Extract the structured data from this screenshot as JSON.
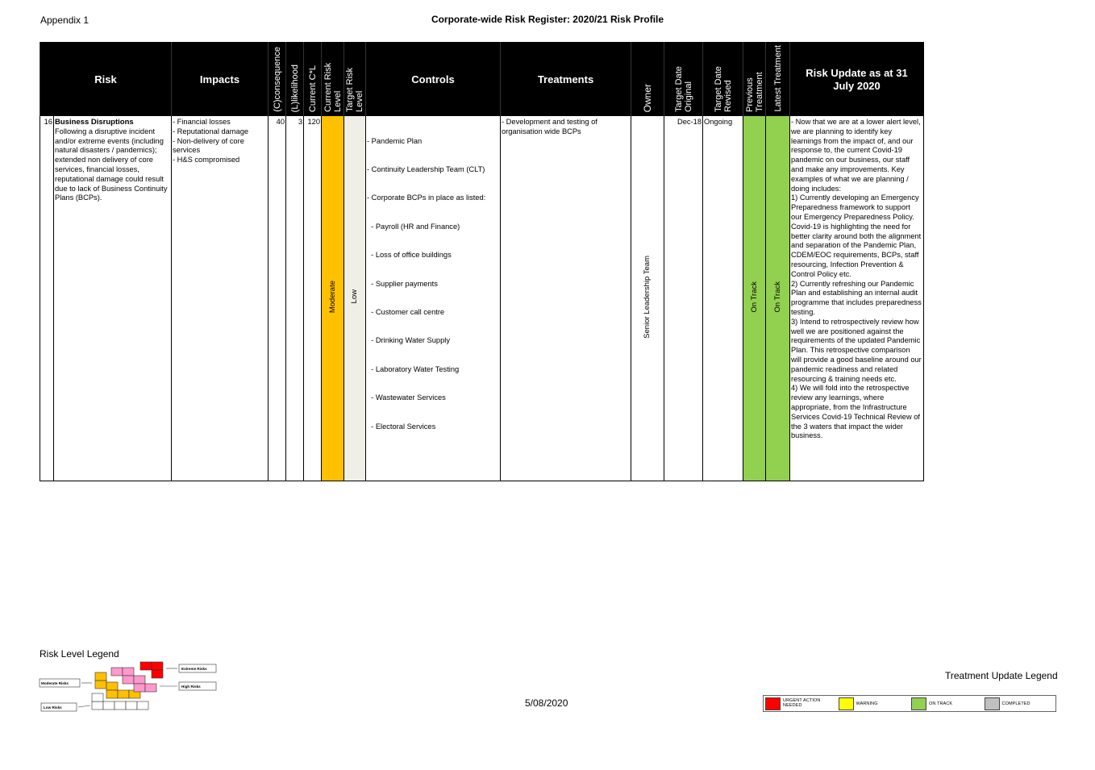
{
  "header": {
    "appendix": "Appendix 1",
    "title": "Corporate-wide Risk Register: 2020/21 Risk Profile"
  },
  "columns": {
    "risk": "Risk",
    "impacts": "Impacts",
    "consequence": "(C)consequence",
    "likelihood": "(L)likelihood",
    "current_cl": "Current C*L",
    "current_risk_level": "Current Risk Level",
    "target_risk_level": "Target Risk Level",
    "controls": "Controls",
    "treatments": "Treatments",
    "owner": "Owner",
    "target_date_original": "Target Date Original",
    "target_date_revised": "Target Date Revised",
    "previous_treatment": "Previous Treatment",
    "latest_treatment": "Latest Treatment",
    "risk_update": "Risk Update as at 31 July 2020"
  },
  "row": {
    "number": "16",
    "risk_title": "Business Disruptions",
    "risk_desc": "Following a disruptive incident and/or extreme events (including natural disasters / pandemics); extended non delivery of core services, financial losses, reputational damage could result due to lack of Business Continuity Plans (BCPs).",
    "impacts": [
      "- Financial losses",
      "- Reputational damage",
      "- Non-delivery of core services",
      "- H&S compromised"
    ],
    "consequence": "40",
    "likelihood": "3",
    "current_cl": "120",
    "current_risk_level": "Moderate",
    "target_risk_level": "Low",
    "controls": [
      "- Pandemic Plan",
      "- Continuity Leadership Team (CLT)",
      "- Corporate BCPs in place as listed:",
      "  - Payroll (HR and Finance)",
      "  - Loss of office buildings",
      "  - Supplier payments",
      "  - Customer call centre",
      "  - Drinking Water Supply",
      "  - Laboratory Water Testing",
      "  - Wastewater Services",
      "  - Electoral Services"
    ],
    "treatments": "- Development and testing of organisation wide BCPs",
    "owner": "Senior Leadership Team",
    "target_date_original": "Dec-18",
    "target_date_revised": "Ongoing",
    "previous_treatment": "On Track",
    "latest_treatment": "On Track",
    "risk_update": "- Now that we are at a lower alert level, we are planning to identify key learnings from the impact of, and our response to, the current Covid-19 pandemic on our business, our staff and make any improvements. Key examples of what we are planning / doing includes:\n1) Currently developing an Emergency Preparedness framework to support our Emergency Preparedness Policy. Covid-19 is highlighting the need for better clarity around both the alignment and separation of the Pandemic Plan, CDEM/EOC requirements, BCPs, staff resourcing, Infection Prevention & Control Policy etc.\n2) Currently refreshing our Pandemic Plan and establishing an internal audit programme that includes preparedness testing.\n3) Intend to retrospectively review how well we are positioned against the requirements of the updated Pandemic Plan. This retrospective comparison will provide a good baseline around our pandemic readiness and related resourcing & training needs etc.\n4) We will fold into the retrospective review any learnings, where appropriate, from the Infrastructure Services Covid-19 Technical Review of the 3 waters that impact the wider business."
  },
  "risk_legend": {
    "label": "Risk Level Legend",
    "extreme": "Extreme Risks",
    "high": "High Risks",
    "moderate": "Moderate Risks",
    "low": "Low Risks",
    "colors": {
      "extreme": "#ff0000",
      "high": "#ff99cc",
      "moderate": "#ffc000",
      "low": "#ffffff"
    }
  },
  "footer": {
    "date": "5/08/2020",
    "treatment_legend_label": "Treatment Update Legend"
  },
  "treatment_legend": [
    {
      "label": "URGENT ACTION NEEDED",
      "color": "#ff0000"
    },
    {
      "label": "WARNING",
      "color": "#ffff00"
    },
    {
      "label": "ON TRACK",
      "color": "#92d050"
    },
    {
      "label": "COMPLETED",
      "color": "#c0c0c0"
    }
  ]
}
